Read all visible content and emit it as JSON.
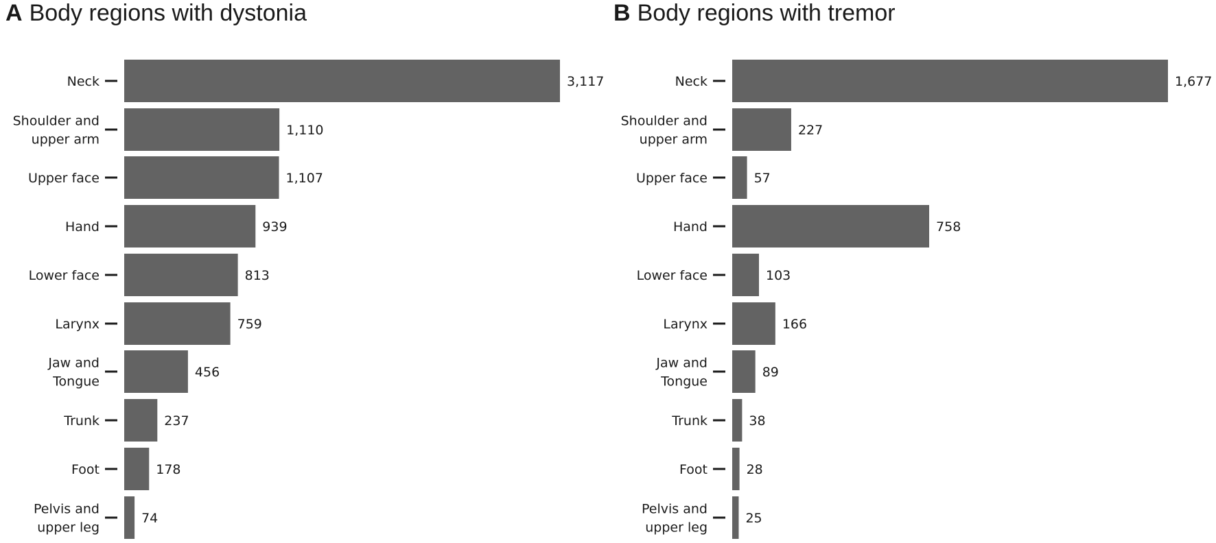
{
  "chart_data": [
    {
      "type": "bar",
      "orientation": "horizontal",
      "panel_letter": "A",
      "title": "Body regions with dystonia",
      "xlabel": "",
      "ylabel": "",
      "grid": false,
      "categories": [
        [
          "Neck"
        ],
        [
          "Shoulder and",
          "upper arm"
        ],
        [
          "Upper face"
        ],
        [
          "Hand"
        ],
        [
          "Lower face"
        ],
        [
          "Larynx"
        ],
        [
          "Jaw and",
          "Tongue"
        ],
        [
          "Trunk"
        ],
        [
          "Foot"
        ],
        [
          "Pelvis and",
          "upper leg"
        ]
      ],
      "values": [
        3117,
        1110,
        1107,
        939,
        813,
        759,
        456,
        237,
        178,
        74
      ],
      "value_labels": [
        "3,117",
        "1,110",
        "1,107",
        "939",
        "813",
        "759",
        "456",
        "237",
        "178",
        "74"
      ],
      "xlim": [
        0,
        3117
      ],
      "bar_color": "#636363"
    },
    {
      "type": "bar",
      "orientation": "horizontal",
      "panel_letter": "B",
      "title": "Body regions with tremor",
      "xlabel": "",
      "ylabel": "",
      "grid": false,
      "categories": [
        [
          "Neck"
        ],
        [
          "Shoulder and",
          "upper arm"
        ],
        [
          "Upper face"
        ],
        [
          "Hand"
        ],
        [
          "Lower face"
        ],
        [
          "Larynx"
        ],
        [
          "Jaw and",
          "Tongue"
        ],
        [
          "Trunk"
        ],
        [
          "Foot"
        ],
        [
          "Pelvis and",
          "upper leg"
        ]
      ],
      "values": [
        1677,
        227,
        57,
        758,
        103,
        166,
        89,
        38,
        28,
        25
      ],
      "value_labels": [
        "1,677",
        "227",
        "57",
        "758",
        "103",
        "166",
        "89",
        "38",
        "28",
        "25"
      ],
      "xlim": [
        0,
        1677
      ],
      "bar_color": "#636363"
    }
  ]
}
